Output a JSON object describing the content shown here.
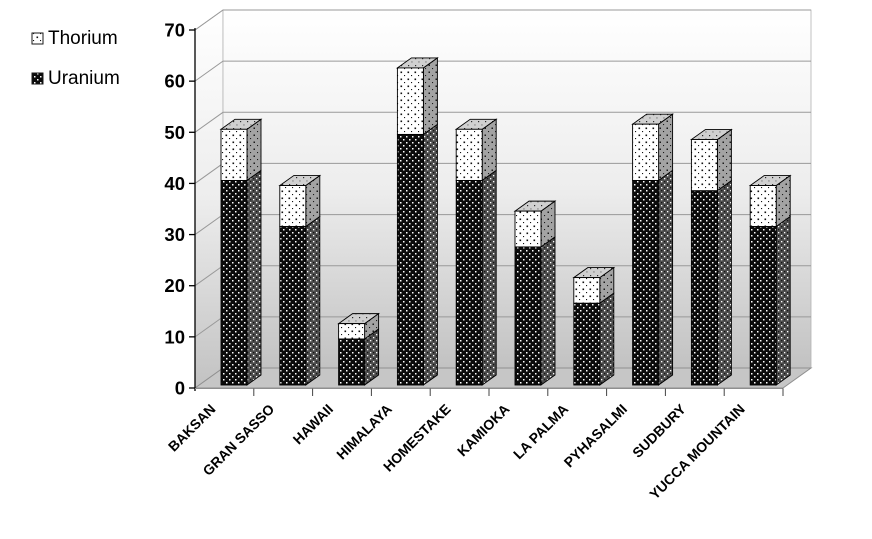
{
  "legend": {
    "items": [
      {
        "label": "Thorium",
        "pattern": "thorium"
      },
      {
        "label": "Uranium",
        "pattern": "uranium"
      }
    ]
  },
  "colors": {
    "background": "#ffffff",
    "wall_gradient_top": "#ffffff",
    "wall_gradient_bottom": "#c2c2c2",
    "floor": "#c6c6c6",
    "gridline": "#999999",
    "axis": "#000000",
    "uranium_fill": "#0b0b0b",
    "thorium_fill": "#ffffff"
  },
  "chart_data": {
    "type": "bar",
    "stacked": true,
    "style": "3d-column",
    "title": "",
    "xlabel": "",
    "ylabel": "",
    "categories": [
      "BAKSAN",
      "GRAN SASSO",
      "HAWAII",
      "HIMALAYA",
      "HOMESTAKE",
      "KAMIOKA",
      "LA PALMA",
      "PYHASALMI",
      "SUDBURY",
      "YUCCA MOUNTAIN"
    ],
    "series": [
      {
        "name": "Uranium",
        "pattern": "black-with-white-dots",
        "values": [
          40,
          31,
          9,
          49,
          40,
          27,
          16,
          40,
          38,
          31
        ]
      },
      {
        "name": "Thorium",
        "pattern": "white-with-black-dots",
        "values": [
          10,
          8,
          3,
          13,
          10,
          7,
          5,
          11,
          10,
          8
        ]
      }
    ],
    "ylim": [
      0,
      70
    ],
    "ytick_interval": 10,
    "ytick_labels": [
      "0",
      "10",
      "20",
      "30",
      "40",
      "50",
      "60",
      "70"
    ],
    "grid": true,
    "legend_position": "top-left"
  }
}
